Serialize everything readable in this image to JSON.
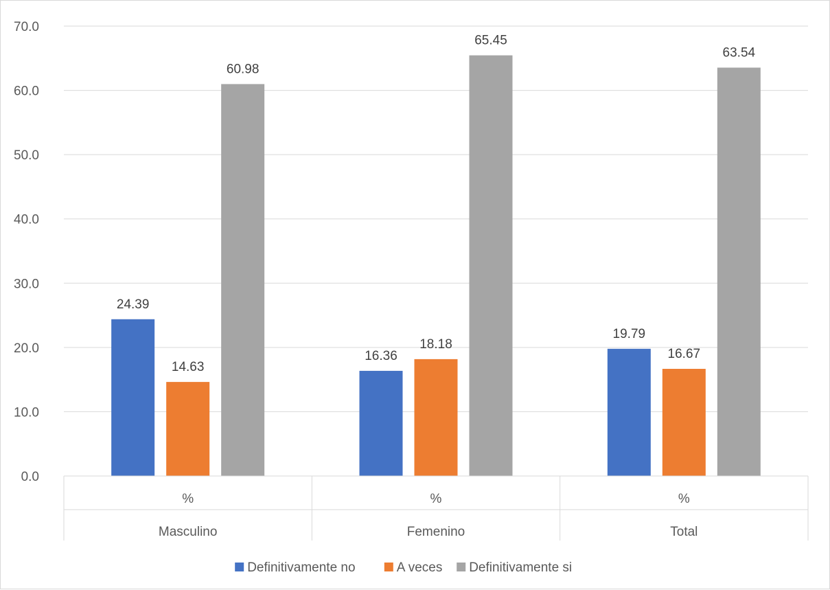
{
  "chart_data": {
    "type": "bar",
    "categories": [
      "Masculino",
      "Femenino",
      "Total"
    ],
    "sub_categories": [
      "%",
      "%",
      "%"
    ],
    "series": [
      {
        "name": "Definitivamente no",
        "color": "#4472C4",
        "values": [
          24.39,
          16.36,
          19.79
        ]
      },
      {
        "name": "A veces",
        "color": "#ED7D31",
        "values": [
          14.63,
          18.18,
          16.67
        ]
      },
      {
        "name": "Definitivamente si",
        "color": "#A5A5A5",
        "values": [
          60.98,
          65.45,
          63.54
        ]
      }
    ],
    "data_labels": [
      [
        "24.39",
        "16.36",
        "19.79"
      ],
      [
        "14.63",
        "18.18",
        "16.67"
      ],
      [
        "60.98",
        "65.45",
        "63.54"
      ]
    ],
    "y_ticks": [
      "0.0",
      "10.0",
      "20.0",
      "30.0",
      "40.0",
      "50.0",
      "60.0",
      "70.0"
    ],
    "ylim": [
      0,
      70
    ],
    "grid": true,
    "legend_position": "bottom",
    "title": "",
    "xlabel": "",
    "ylabel": ""
  }
}
